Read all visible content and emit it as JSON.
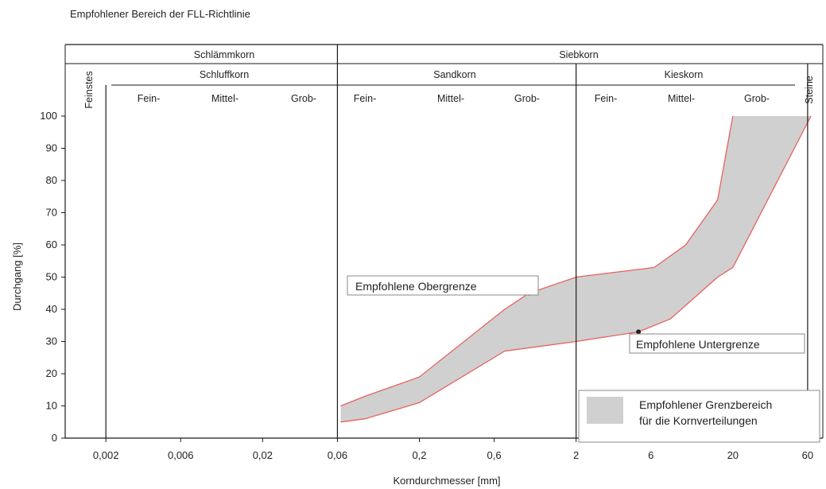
{
  "chart_data": {
    "type": "area",
    "title": "Empfohlener Bereich der FLL-Richtlinie",
    "xlabel": "Korndurchmesser [mm]",
    "ylabel": "Durchgang [%]",
    "x_scale": "log",
    "xlim": [
      0.0011,
      75
    ],
    "ylim": [
      0,
      100
    ],
    "x_ticks": [
      "0,002",
      "0,006",
      "0,02",
      "0,06",
      "0,2",
      "0,6",
      "2",
      "6",
      "20",
      "60"
    ],
    "y_ticks": [
      "0",
      "10",
      "20",
      "30",
      "40",
      "50",
      "60",
      "70",
      "80",
      "90",
      "100"
    ],
    "grain_header": {
      "feinstes": "Feinstes",
      "steine": "Steine",
      "schlaemmkorn": "Schlämmkorn",
      "siebkorn": "Siebkorn",
      "schluffkorn": "Schluffkorn",
      "sandkorn": "Sandkorn",
      "kieskorn": "Kieskorn",
      "sub": [
        "Fein-",
        "Mittel-",
        "Grob-"
      ]
    },
    "series": [
      {
        "name": "Empfohlene Obergrenze",
        "x": [
          0.063,
          0.09,
          0.2,
          0.7,
          1.0,
          2.0,
          6.3,
          10.0,
          16.0,
          20.0
        ],
        "y": [
          10,
          13,
          19,
          40,
          45,
          50,
          53,
          60,
          74,
          100
        ]
      },
      {
        "name": "Empfohlene Untergrenze",
        "x": [
          0.063,
          0.09,
          0.2,
          0.7,
          2.0,
          5.0,
          8.0,
          16.0,
          20.0,
          63.0
        ],
        "y": [
          5,
          6,
          11,
          27,
          30,
          33,
          37,
          50,
          53,
          100
        ]
      }
    ],
    "legend": {
      "label_line1": "Empfohlener Grenzbereich",
      "label_line2": "für die Kornverteilungen",
      "position": "bottom-right"
    },
    "colors": {
      "band": "#d0d0d0",
      "boundary": "#e8615f",
      "axis": "#1a1a1a"
    }
  }
}
